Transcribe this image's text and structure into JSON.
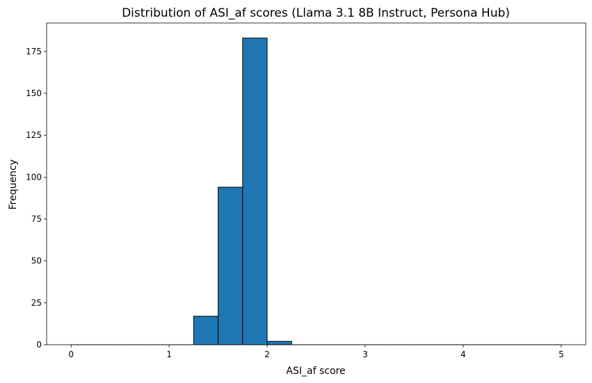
{
  "chart_data": {
    "type": "bar",
    "title": "Distribution of ASI_af scores (Llama 3.1 8B Instruct, Persona Hub)",
    "xlabel": "ASI_af score",
    "ylabel": "Frequency",
    "xlim": [
      -0.25,
      5.25
    ],
    "ylim": [
      0,
      192
    ],
    "xticks": [
      0,
      1,
      2,
      3,
      4,
      5
    ],
    "yticks": [
      0,
      25,
      50,
      75,
      100,
      125,
      150,
      175
    ],
    "bin_edges": [
      0,
      0.25,
      0.5,
      0.75,
      1.0,
      1.25,
      1.5,
      1.75,
      2.0,
      2.25,
      2.5,
      2.75,
      3.0,
      3.25,
      3.5,
      3.75,
      4.0,
      4.25,
      4.5,
      4.75,
      5.0
    ],
    "values": [
      0,
      0,
      0,
      0,
      0,
      17,
      94,
      183,
      2,
      0,
      0,
      0,
      0,
      0,
      0,
      0,
      0,
      0,
      0,
      0
    ],
    "bar_color": "#1f77b4",
    "edge_color": "#000000",
    "grid": false
  }
}
